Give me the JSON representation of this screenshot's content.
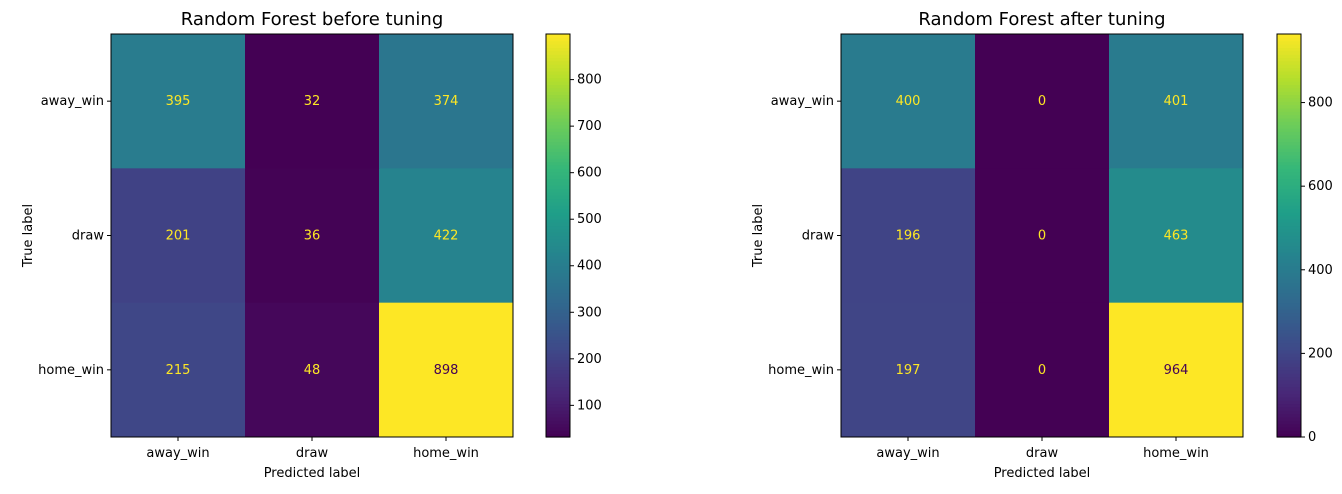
{
  "chart_data": [
    {
      "type": "heatmap",
      "title": "Random Forest before tuning",
      "xlabel": "Predicted label",
      "ylabel": "True label",
      "x_categories": [
        "away_win",
        "draw",
        "home_win"
      ],
      "y_categories": [
        "away_win",
        "draw",
        "home_win"
      ],
      "values": [
        [
          395,
          32,
          374
        ],
        [
          201,
          36,
          422
        ],
        [
          215,
          48,
          898
        ]
      ],
      "colormap": "viridis",
      "vmin": 32,
      "vmax": 898,
      "colorbar_ticks": [
        100,
        200,
        300,
        400,
        500,
        600,
        700,
        800
      ]
    },
    {
      "type": "heatmap",
      "title": "Random Forest after tuning",
      "xlabel": "Predicted label",
      "ylabel": "True label",
      "x_categories": [
        "away_win",
        "draw",
        "home_win"
      ],
      "y_categories": [
        "away_win",
        "draw",
        "home_win"
      ],
      "values": [
        [
          400,
          0,
          401
        ],
        [
          196,
          0,
          463
        ],
        [
          197,
          0,
          964
        ]
      ],
      "colormap": "viridis",
      "vmin": 0,
      "vmax": 964,
      "colorbar_ticks": [
        0,
        200,
        400,
        600,
        800
      ]
    }
  ]
}
